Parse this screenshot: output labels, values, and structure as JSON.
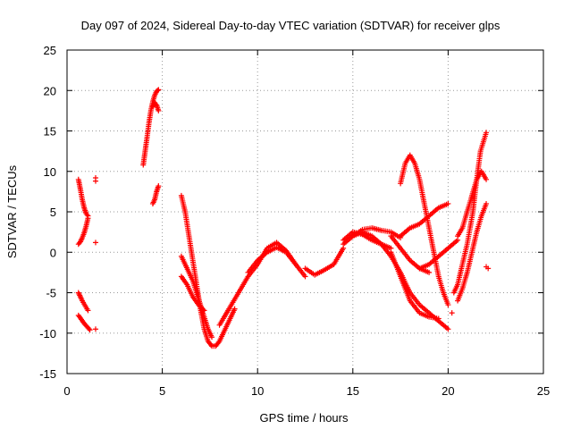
{
  "chart_data": {
    "type": "scatter",
    "title": "Day 097 of 2024, Sidereal Day-to-day VTEC variation (SDTVAR) for receiver glps",
    "xlabel": "GPS time / hours",
    "ylabel": "SDTVAR / TECUs",
    "xlim": [
      0,
      25
    ],
    "ylim": [
      -15,
      25
    ],
    "xticks": [
      0,
      5,
      10,
      15,
      20,
      25
    ],
    "yticks": [
      -15,
      -10,
      -5,
      0,
      5,
      10,
      15,
      20,
      25
    ],
    "grid": true,
    "marker": "+",
    "color": "#ff0000",
    "series": [
      {
        "name": "arc-a1",
        "x": [
          0.6,
          0.7,
          0.8,
          0.9,
          1.0,
          1.1
        ],
        "y": [
          9.0,
          7.8,
          6.5,
          5.5,
          4.8,
          4.5
        ]
      },
      {
        "name": "arc-a2",
        "x": [
          0.6,
          0.7,
          0.8,
          0.9,
          1.0,
          1.1
        ],
        "y": [
          1.0,
          1.3,
          1.8,
          2.4,
          3.2,
          4.2
        ]
      },
      {
        "name": "arc-a3",
        "x": [
          0.6,
          0.7,
          0.8,
          0.9,
          1.0,
          1.1
        ],
        "y": [
          -5.0,
          -5.5,
          -6.0,
          -6.4,
          -6.8,
          -7.2
        ]
      },
      {
        "name": "arc-a4",
        "x": [
          0.6,
          0.75,
          0.9,
          1.05,
          1.2
        ],
        "y": [
          -7.8,
          -8.3,
          -8.8,
          -9.2,
          -9.6
        ]
      },
      {
        "name": "pts-a",
        "x": [
          1.5,
          1.5,
          1.5,
          1.5
        ],
        "y": [
          9.2,
          8.8,
          1.2,
          -9.5
        ]
      },
      {
        "name": "arc-b1",
        "x": [
          4.0,
          4.1,
          4.2,
          4.3,
          4.4,
          4.5,
          4.6,
          4.7,
          4.8
        ],
        "y": [
          10.8,
          12.5,
          14.2,
          16.0,
          17.5,
          18.6,
          19.4,
          19.9,
          20.1
        ]
      },
      {
        "name": "arc-b2",
        "x": [
          4.5,
          4.6,
          4.7,
          4.8
        ],
        "y": [
          18.0,
          18.5,
          18.2,
          17.5
        ]
      },
      {
        "name": "arc-b3",
        "x": [
          4.5,
          4.6,
          4.7,
          4.8
        ],
        "y": [
          6.0,
          6.5,
          7.5,
          8.2
        ]
      },
      {
        "name": "arc-c1",
        "x": [
          6.0,
          6.2,
          6.4,
          6.6,
          6.8,
          7.0,
          7.2,
          7.4,
          7.6,
          7.8,
          8.0,
          8.2,
          8.4,
          8.6,
          8.8
        ],
        "y": [
          7.0,
          5.0,
          2.0,
          -1.0,
          -4.0,
          -7.0,
          -9.5,
          -11.0,
          -11.6,
          -11.6,
          -11.0,
          -10.0,
          -9.0,
          -8.0,
          -7.0
        ]
      },
      {
        "name": "arc-c2",
        "x": [
          6.0,
          6.2,
          6.4,
          6.6,
          6.8,
          7.0,
          7.2,
          7.4,
          7.6
        ],
        "y": [
          -0.5,
          -1.5,
          -2.5,
          -3.5,
          -5.0,
          -6.5,
          -8.0,
          -9.5,
          -10.5
        ]
      },
      {
        "name": "arc-c3",
        "x": [
          6.0,
          6.3,
          6.6,
          6.9,
          7.2
        ],
        "y": [
          -3.0,
          -4.0,
          -5.5,
          -6.5,
          -7.2
        ]
      },
      {
        "name": "arc-d1",
        "x": [
          8.0,
          8.5,
          9.0,
          9.5,
          10.0,
          10.5,
          11.0,
          11.5,
          12.0,
          12.5
        ],
        "y": [
          -9.0,
          -7.0,
          -5.0,
          -3.0,
          -1.5,
          0.5,
          1.2,
          0.2,
          -1.5,
          -3.0
        ]
      },
      {
        "name": "arc-d2",
        "x": [
          9.5,
          10.0,
          10.5,
          11.0,
          11.5,
          12.0
        ],
        "y": [
          -2.5,
          -1.0,
          0.0,
          0.6,
          0.0,
          -1.5
        ]
      },
      {
        "name": "arc-d3",
        "x": [
          12.5,
          13.0,
          13.5,
          14.0,
          14.5
        ],
        "y": [
          -2.0,
          -2.8,
          -2.2,
          -1.5,
          0.5
        ]
      },
      {
        "name": "arc-e1",
        "x": [
          14.5,
          15.0,
          15.5,
          16.0,
          16.5,
          17.0,
          17.5
        ],
        "y": [
          1.0,
          2.0,
          2.8,
          3.0,
          2.7,
          2.5,
          1.8
        ]
      },
      {
        "name": "arc-e2",
        "x": [
          14.5,
          15.0,
          15.5,
          16.0,
          16.5,
          17.0
        ],
        "y": [
          1.5,
          2.5,
          2.2,
          1.5,
          1.0,
          0.5
        ]
      },
      {
        "name": "arc-e3",
        "x": [
          15.0,
          15.5,
          16.0,
          16.5,
          17.0,
          17.5,
          18.0,
          18.5,
          19.0,
          19.5,
          20.0
        ],
        "y": [
          2.0,
          2.5,
          2.0,
          1.0,
          -0.5,
          -2.5,
          -5.0,
          -6.5,
          -7.5,
          -8.5,
          -9.5
        ]
      },
      {
        "name": "arc-f1",
        "x": [
          17.0,
          17.5,
          18.0,
          18.5,
          19.0,
          19.5
        ],
        "y": [
          0.0,
          -3.0,
          -6.0,
          -7.5,
          -8.0,
          -8.2
        ]
      },
      {
        "name": "arc-f2",
        "x": [
          17.0,
          17.5,
          18.0,
          18.5,
          19.0
        ],
        "y": [
          2.0,
          0.5,
          -1.0,
          -2.0,
          -2.5
        ]
      },
      {
        "name": "arc-g1",
        "x": [
          17.5,
          17.75,
          18.0,
          18.25,
          18.5,
          18.75,
          19.0,
          19.25,
          19.5,
          19.75,
          20.0
        ],
        "y": [
          8.5,
          11.0,
          12.0,
          11.0,
          9.0,
          6.0,
          3.0,
          0.0,
          -3.0,
          -5.0,
          -6.5
        ]
      },
      {
        "name": "arc-g2",
        "x": [
          17.5,
          18.0,
          18.5,
          19.0,
          19.5,
          20.0
        ],
        "y": [
          2.0,
          3.0,
          3.5,
          4.5,
          5.5,
          6.0
        ]
      },
      {
        "name": "arc-g3",
        "x": [
          18.5,
          19.0,
          19.5,
          20.0,
          20.5
        ],
        "y": [
          -2.0,
          -1.5,
          -0.5,
          0.5,
          1.5
        ]
      },
      {
        "name": "arc-h1",
        "x": [
          20.3,
          20.5,
          20.7,
          21.0,
          21.3,
          21.5,
          21.7,
          22.0
        ],
        "y": [
          -5.0,
          -4.0,
          -2.0,
          1.0,
          5.0,
          9.0,
          12.5,
          14.8
        ]
      },
      {
        "name": "arc-h2",
        "x": [
          20.5,
          20.75,
          21.0,
          21.25,
          21.5,
          21.75,
          22.0
        ],
        "y": [
          -6.0,
          -4.5,
          -2.5,
          0.0,
          2.5,
          4.5,
          6.0
        ]
      },
      {
        "name": "arc-h3",
        "x": [
          20.5,
          20.75,
          21.0,
          21.25,
          21.5,
          21.75,
          22.0
        ],
        "y": [
          2.0,
          3.0,
          5.0,
          7.0,
          9.0,
          10.0,
          9.0
        ]
      },
      {
        "name": "pts-h",
        "x": [
          20.2,
          22.0,
          22.1
        ],
        "y": [
          -7.5,
          -1.8,
          -2.0
        ]
      }
    ]
  }
}
